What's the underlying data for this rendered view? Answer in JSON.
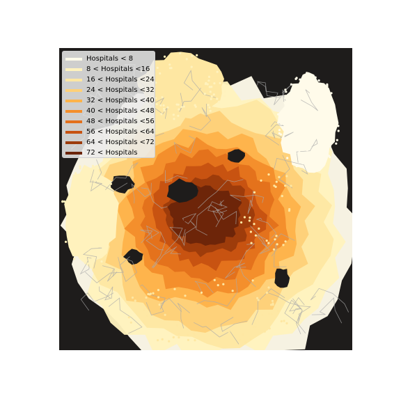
{
  "legend": {
    "items": [
      {
        "label": "Hospitals < 8",
        "color": "#fffbea"
      },
      {
        "label": "8 < Hospitals <16",
        "color": "#fff2bd"
      },
      {
        "label": "16 < Hospitals <24",
        "color": "#fee7a2"
      },
      {
        "label": "24 < Hospitals <32",
        "color": "#fed078"
      },
      {
        "label": "32 < Hospitals <40",
        "color": "#feb34a"
      },
      {
        "label": "40 < Hospitals <48",
        "color": "#f48e2b"
      },
      {
        "label": "48 < Hospitals <56",
        "color": "#e3701c"
      },
      {
        "label": "56 < Hospitals <64",
        "color": "#c75211"
      },
      {
        "label": "64 < Hospitals <72",
        "color": "#9c3b0b"
      },
      {
        "label": "72 < Hospitals",
        "color": "#6b2409"
      }
    ]
  },
  "map": {
    "background_color": "#1e1c1b",
    "road_color": "#aaaaaa"
  }
}
